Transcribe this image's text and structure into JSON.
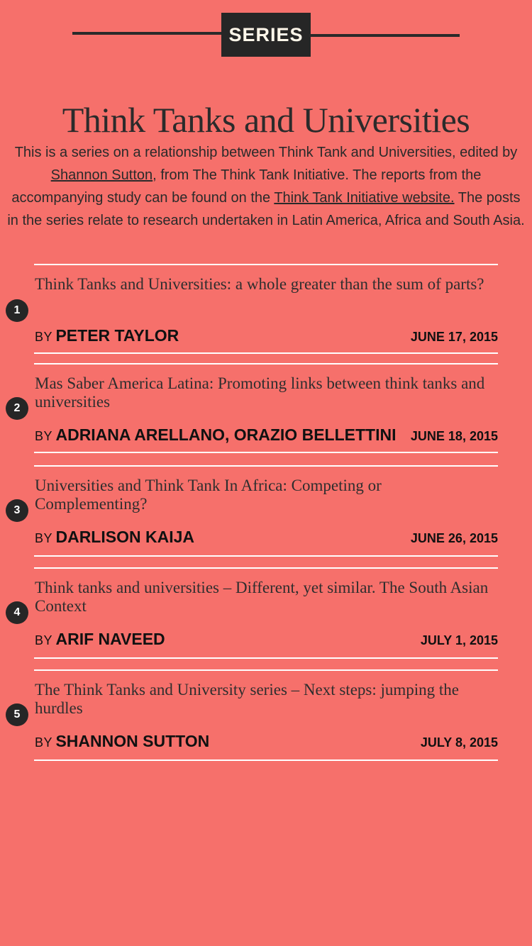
{
  "badge": {
    "label": "SERIES"
  },
  "title": "Think Tanks and Universities",
  "intro": {
    "part1": "This is a series on a relationship between Think Tank and Universities, edited by ",
    "editor_link": "Shannon Sutton",
    "part2": ", from The Think Tank Initiative. The reports from the accompanying study can be found on the ",
    "website_link": "Think Tank Initiative website.",
    "part3": " The posts in the series relate to research undertaken in Latin America, Africa and South Asia."
  },
  "by_label": "BY",
  "articles": [
    {
      "number": "1",
      "title": "Think Tanks and Universities: a whole greater than the sum of parts?",
      "author": "PETER TAYLOR",
      "date": "JUNE 17, 2015"
    },
    {
      "number": "2",
      "title": "Mas Saber America Latina: Promoting links between think tanks and universities",
      "author": "ADRIANA ARELLANO, ORAZIO BELLETTINI",
      "date": "JUNE 18, 2015"
    },
    {
      "number": "3",
      "title": "Universities and Think Tank In Africa: Competing or Complementing?",
      "author": "DARLISON KAIJA",
      "date": "JUNE 26, 2015"
    },
    {
      "number": "4",
      "title": "Think tanks and universities – Different, yet similar. The South Asian Context",
      "author": "ARIF NAVEED",
      "date": "JULY 1, 2015"
    },
    {
      "number": "5",
      "title": "The Think Tanks and University series – Next steps: jumping the hurdles",
      "author": "SHANNON SUTTON",
      "date": "JULY 8, 2015"
    }
  ],
  "colors": {
    "background": "#f6706b",
    "badge": "#262626",
    "rule": "#ffffff"
  }
}
